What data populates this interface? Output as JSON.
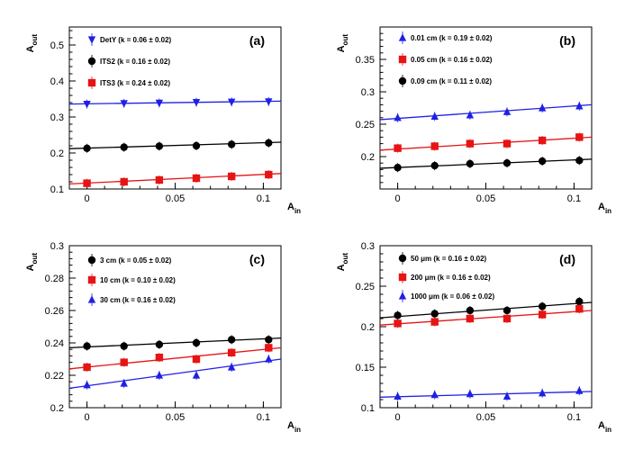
{
  "chart_data": [
    {
      "type": "scatter",
      "panel_label": "(a)",
      "xlabel": "A",
      "xlabel_sub": "in",
      "ylabel": "A",
      "ylabel_sub": "out",
      "xlim": [
        -0.01,
        0.11
      ],
      "ylim": [
        0.1,
        0.55
      ],
      "xticks": [
        0,
        0.05,
        0.1
      ],
      "xtick_labels": [
        "0",
        "0.05",
        "0.1"
      ],
      "yticks": [
        0.1,
        0.2,
        0.3,
        0.4,
        0.5
      ],
      "ytick_labels": [
        "0.1",
        "0.2",
        "0.3",
        "0.4",
        "0.5"
      ],
      "x": [
        0,
        0.021,
        0.041,
        0.062,
        0.082,
        0.103
      ],
      "series": [
        {
          "name": "DetY (k = 0.06 ± 0.02)",
          "marker": "triangle-down",
          "color": "#1f1fe6",
          "values": [
            0.336,
            0.338,
            0.339,
            0.341,
            0.342,
            0.343
          ],
          "fit": [
            0.336,
            0.344
          ]
        },
        {
          "name": "ITS2 (k = 0.16 ± 0.02)",
          "marker": "circle",
          "color": "#000000",
          "values": [
            0.213,
            0.216,
            0.219,
            0.22,
            0.224,
            0.228
          ],
          "fit": [
            0.212,
            0.23
          ]
        },
        {
          "name": "ITS3 (k = 0.24 ± 0.02)",
          "marker": "square",
          "color": "#e61414",
          "values": [
            0.116,
            0.12,
            0.125,
            0.13,
            0.135,
            0.14
          ],
          "fit": [
            0.114,
            0.143
          ]
        }
      ]
    },
    {
      "type": "scatter",
      "panel_label": "(b)",
      "xlabel": "A",
      "xlabel_sub": "in",
      "ylabel": "A",
      "ylabel_sub": "out",
      "xlim": [
        -0.01,
        0.11
      ],
      "ylim": [
        0.15,
        0.4
      ],
      "xticks": [
        0,
        0.05,
        0.1
      ],
      "xtick_labels": [
        "0",
        "0.05",
        "0.1"
      ],
      "yticks": [
        0.2,
        0.25,
        0.3,
        0.35
      ],
      "ytick_labels": [
        "0.2",
        "0.25",
        "0.3",
        "0.35"
      ],
      "x": [
        0,
        0.021,
        0.041,
        0.062,
        0.082,
        0.103
      ],
      "series": [
        {
          "name": "0.01 cm (k = 0.19 ± 0.02)",
          "marker": "triangle-up",
          "color": "#1f1fe6",
          "values": [
            0.26,
            0.262,
            0.264,
            0.269,
            0.275,
            0.278
          ],
          "fit": [
            0.257,
            0.28
          ]
        },
        {
          "name": "0.05 cm (k = 0.16 ± 0.02)",
          "marker": "square",
          "color": "#e61414",
          "values": [
            0.213,
            0.216,
            0.22,
            0.22,
            0.225,
            0.23
          ],
          "fit": [
            0.21,
            0.23
          ]
        },
        {
          "name": "0.09 cm (k = 0.11 ± 0.02)",
          "marker": "circle",
          "color": "#000000",
          "values": [
            0.183,
            0.186,
            0.189,
            0.19,
            0.193,
            0.194
          ],
          "fit": [
            0.182,
            0.196
          ]
        }
      ]
    },
    {
      "type": "scatter",
      "panel_label": "(c)",
      "xlabel": "A",
      "xlabel_sub": "in",
      "ylabel": "A",
      "ylabel_sub": "out",
      "xlim": [
        -0.01,
        0.11
      ],
      "ylim": [
        0.2,
        0.3
      ],
      "xticks": [
        0,
        0.05,
        0.1
      ],
      "xtick_labels": [
        "0",
        "0.05",
        "0.1"
      ],
      "yticks": [
        0.2,
        0.22,
        0.24,
        0.26,
        0.28,
        0.3
      ],
      "ytick_labels": [
        "0.2",
        "0.22",
        "0.24",
        "0.26",
        "0.28",
        "0.3"
      ],
      "x": [
        0,
        0.021,
        0.041,
        0.062,
        0.082,
        0.103
      ],
      "series": [
        {
          "name": "3 cm (k = 0.05 ± 0.02)",
          "marker": "circle",
          "color": "#000000",
          "values": [
            0.238,
            0.238,
            0.239,
            0.24,
            0.242,
            0.242
          ],
          "fit": [
            0.237,
            0.243
          ]
        },
        {
          "name": "10 cm (k = 0.10 ± 0.02)",
          "marker": "square",
          "color": "#e61414",
          "values": [
            0.225,
            0.228,
            0.231,
            0.23,
            0.234,
            0.237
          ],
          "fit": [
            0.224,
            0.237
          ]
        },
        {
          "name": "30 cm (k = 0.16 ± 0.02)",
          "marker": "triangle-up",
          "color": "#1f1fe6",
          "values": [
            0.214,
            0.215,
            0.22,
            0.22,
            0.225,
            0.23
          ],
          "fit": [
            0.212,
            0.23
          ]
        }
      ]
    },
    {
      "type": "scatter",
      "panel_label": "(d)",
      "xlabel": "A",
      "xlabel_sub": "in",
      "ylabel": "A",
      "ylabel_sub": "out",
      "xlim": [
        -0.01,
        0.11
      ],
      "ylim": [
        0.1,
        0.3
      ],
      "xticks": [
        0,
        0.05,
        0.1
      ],
      "xtick_labels": [
        "0",
        "0.05",
        "0.1"
      ],
      "yticks": [
        0.1,
        0.15,
        0.2,
        0.25,
        0.3
      ],
      "ytick_labels": [
        "0.1",
        "0.15",
        "0.2",
        "0.25",
        "0.3"
      ],
      "x": [
        0,
        0.021,
        0.041,
        0.062,
        0.082,
        0.103
      ],
      "series": [
        {
          "name": "50 μm (k = 0.16 ± 0.02)",
          "marker": "circle",
          "color": "#000000",
          "values": [
            0.214,
            0.216,
            0.22,
            0.22,
            0.225,
            0.231
          ],
          "fit": [
            0.211,
            0.23
          ]
        },
        {
          "name": "200 μm (k = 0.16 ± 0.02)",
          "marker": "square",
          "color": "#e61414",
          "values": [
            0.204,
            0.206,
            0.21,
            0.21,
            0.215,
            0.222
          ],
          "fit": [
            0.202,
            0.22
          ]
        },
        {
          "name": "1000 μm (k = 0.06 ± 0.02)",
          "marker": "triangle-up",
          "color": "#1f1fe6",
          "values": [
            0.114,
            0.116,
            0.117,
            0.114,
            0.118,
            0.121
          ],
          "fit": [
            0.113,
            0.12
          ]
        }
      ]
    }
  ]
}
